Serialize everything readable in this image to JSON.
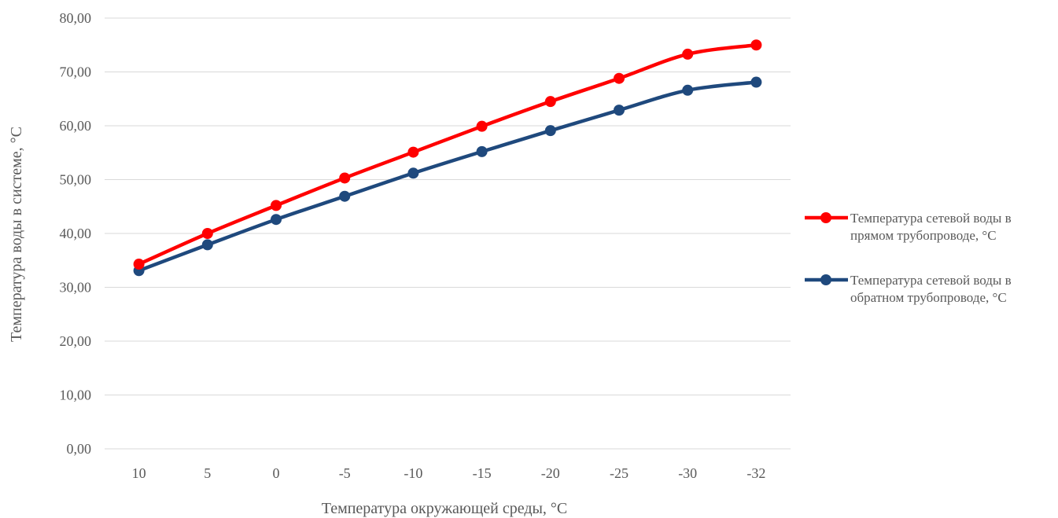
{
  "chart_data": {
    "type": "line",
    "title": "",
    "xlabel": "Температура  окружающей среды, °С",
    "ylabel": "Температура  воды в системе,  °С",
    "categories": [
      "10",
      "5",
      "0",
      "-5",
      "-10",
      "-15",
      "-20",
      "-25",
      "-30",
      "-32"
    ],
    "ylim": [
      0,
      80
    ],
    "yticks": [
      "0,00",
      "10,00",
      "20,00",
      "30,00",
      "40,00",
      "50,00",
      "60,00",
      "70,00",
      "80,00"
    ],
    "grid": true,
    "legend_position": "right",
    "series": [
      {
        "name_lines": [
          "Температура  сетевой воды в",
          "прямом трубопроводе, °С"
        ],
        "color": "#ff0000",
        "values": [
          34.3,
          40.0,
          45.2,
          50.3,
          55.1,
          59.9,
          64.5,
          68.8,
          73.3,
          75.0
        ]
      },
      {
        "name_lines": [
          "Температура  сетевой воды в",
          "обратном трубопроводе, °С"
        ],
        "color": "#1f497d",
        "values": [
          33.1,
          37.9,
          42.6,
          46.9,
          51.2,
          55.2,
          59.1,
          62.9,
          66.6,
          68.1
        ]
      }
    ]
  }
}
